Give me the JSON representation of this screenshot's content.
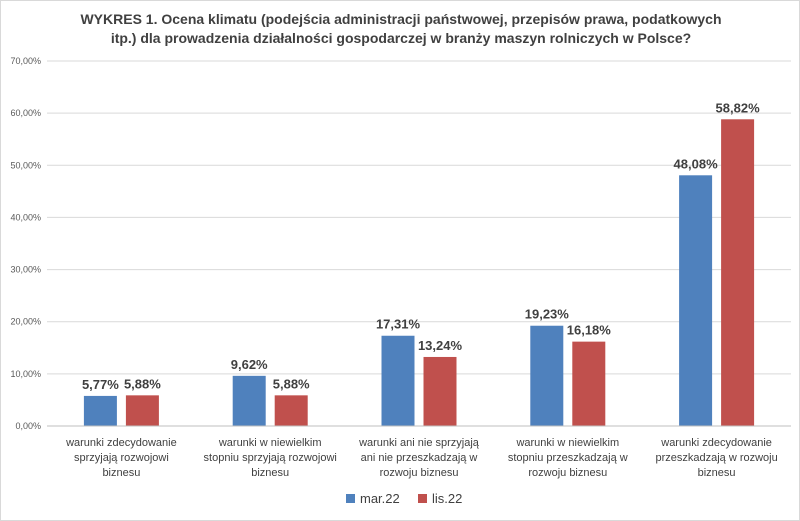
{
  "chart_data": {
    "type": "bar",
    "title_lines": [
      "WYKRES 1. Ocena klimatu (podejścia administracji państwowej, przepisów prawa, podatkowych",
      "itp.) dla prowadzenia działalności gospodarczej w branży maszyn rolniczych w Polsce?"
    ],
    "categories": [
      [
        "warunki zdecydowanie",
        "sprzyjają rozwojowi",
        "biznesu"
      ],
      [
        "warunki w niewielkim",
        "stopniu sprzyjają rozwojowi",
        "biznesu"
      ],
      [
        "warunki ani nie sprzyjają",
        "ani nie przeszkadzają w",
        "rozwoju biznesu"
      ],
      [
        "warunki w niewielkim",
        "stopniu przeszkadzają w",
        "rozwoju biznesu"
      ],
      [
        "warunki zdecydowanie",
        "przeszkadzają w rozwoju",
        "biznesu"
      ]
    ],
    "series": [
      {
        "name": "mar.22",
        "color": "#4f81bd",
        "values": [
          5.77,
          9.62,
          17.31,
          19.23,
          48.08
        ],
        "labels": [
          "5,77%",
          "9,62%",
          "17,31%",
          "19,23%",
          "48,08%"
        ]
      },
      {
        "name": "lis.22",
        "color": "#c0504d",
        "values": [
          5.88,
          5.88,
          13.24,
          16.18,
          58.82
        ],
        "labels": [
          "5,88%",
          "5,88%",
          "13,24%",
          "16,18%",
          "58,82%"
        ]
      }
    ],
    "ylim": [
      0,
      70
    ],
    "yticks": [
      0,
      10,
      20,
      30,
      40,
      50,
      60,
      70
    ],
    "ytick_labels": [
      "0,00%",
      "10,00%",
      "20,00%",
      "30,00%",
      "40,00%",
      "50,00%",
      "60,00%",
      "70,00%"
    ],
    "grid": true,
    "legend": "bottom",
    "xlabel": "",
    "ylabel": ""
  }
}
